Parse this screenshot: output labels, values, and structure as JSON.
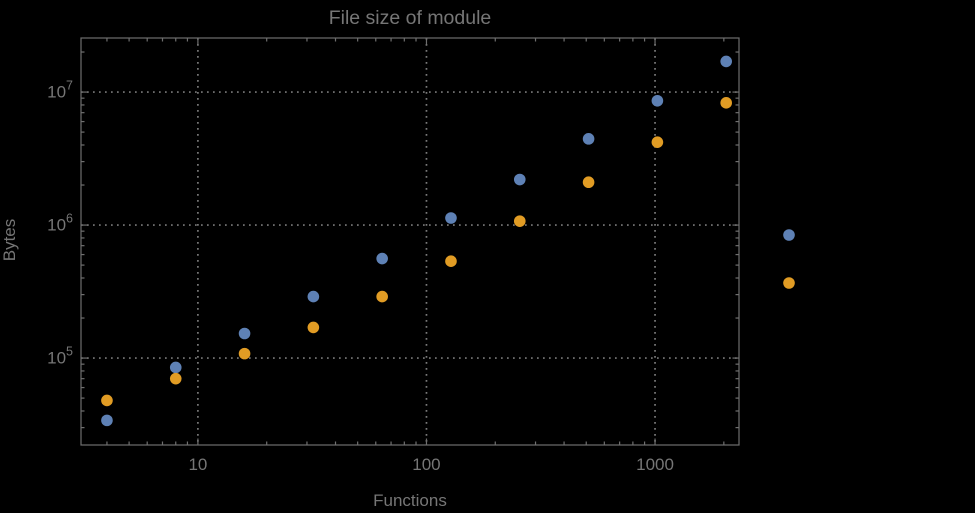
{
  "title": "File size of module",
  "colors": {
    "background": "#000000",
    "frame": "#6f6f6f",
    "grid": "#7a7a7a",
    "text": "#767676",
    "series1": "#5e81b5",
    "series2": "#e19c24"
  },
  "chart_data": {
    "type": "scatter",
    "title": "File size of module",
    "xlabel": "Functions",
    "ylabel": "Bytes",
    "xscale": "log",
    "yscale": "log",
    "xlim": [
      3.08,
      2330
    ],
    "ylim": [
      22200,
      25500000
    ],
    "grid": "dotted-major",
    "x_major_ticks": [
      10,
      100,
      1000
    ],
    "x_tick_labels": [
      "10",
      "100",
      "1000"
    ],
    "y_major_ticks": [
      100000,
      1000000,
      10000000
    ],
    "y_tick_exponents": [
      5,
      6,
      7
    ],
    "x": [
      4,
      8,
      16,
      32,
      64,
      128,
      256,
      512,
      1024,
      2048
    ],
    "series": [
      {
        "name": "series-1-blue",
        "color": "#5e81b5",
        "values": [
          34000,
          85000,
          153000,
          290000,
          560000,
          1130000,
          2200000,
          4450000,
          8600000,
          17000000
        ]
      },
      {
        "name": "series-2-orange",
        "color": "#e19c24",
        "values": [
          48000,
          70000,
          108000,
          170000,
          290000,
          535000,
          1070000,
          2100000,
          4200000,
          8300000
        ]
      }
    ],
    "legend": {
      "position": "right-outside",
      "markers": [
        {
          "name": "series-1-marker",
          "color": "#5e81b5"
        },
        {
          "name": "series-2-marker",
          "color": "#e19c24"
        }
      ]
    }
  }
}
